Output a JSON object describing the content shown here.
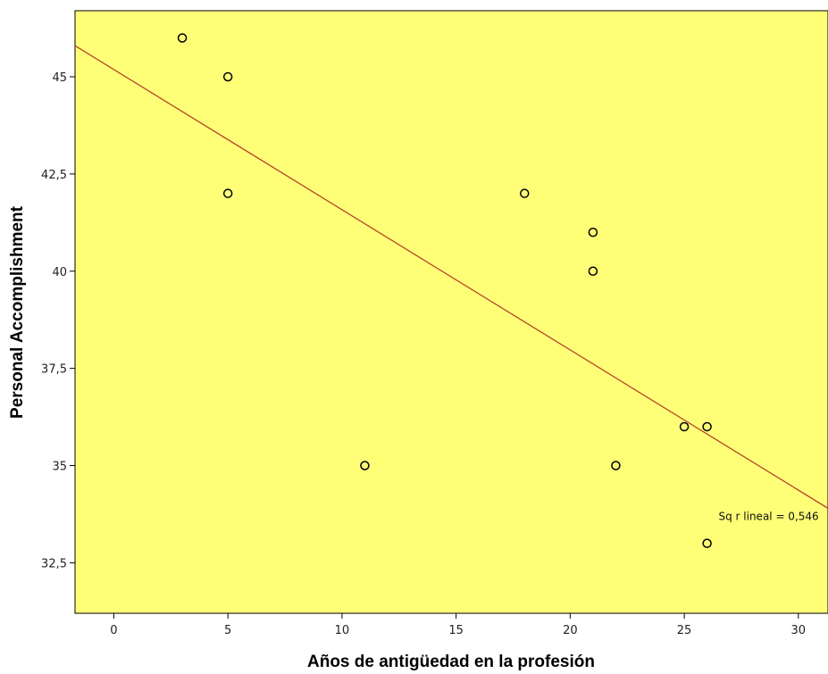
{
  "chart_data": {
    "type": "scatter",
    "xlabel": "Años de antigüedad en la profesión",
    "ylabel": "Personal Accomplishment",
    "xlim": [
      -1.7,
      31.3
    ],
    "ylim": [
      31.2,
      46.7
    ],
    "xticks": [
      0,
      5,
      10,
      15,
      20,
      25,
      30
    ],
    "yticks": [
      32.5,
      35,
      37.5,
      40,
      42.5,
      45
    ],
    "xtick_labels": [
      "0",
      "5",
      "10",
      "15",
      "20",
      "25",
      "30"
    ],
    "ytick_labels": [
      "32,5",
      "35",
      "37,5",
      "40",
      "42,5",
      "45"
    ],
    "points": [
      {
        "x": 3,
        "y": 46
      },
      {
        "x": 5,
        "y": 45
      },
      {
        "x": 5,
        "y": 42
      },
      {
        "x": 11,
        "y": 35
      },
      {
        "x": 18,
        "y": 42
      },
      {
        "x": 21,
        "y": 41
      },
      {
        "x": 21,
        "y": 40
      },
      {
        "x": 22,
        "y": 35
      },
      {
        "x": 25,
        "y": 36
      },
      {
        "x": 26,
        "y": 36
      },
      {
        "x": 26,
        "y": 33
      }
    ],
    "fit_line": {
      "type": "linear",
      "x0": -1.7,
      "y0": 45.8,
      "x1": 31.3,
      "y1": 33.9
    },
    "annotation": "Sq r lineal = 0,546",
    "annotation_anchor": {
      "x": 28.7,
      "y": 33.6
    },
    "grid": false,
    "legend": "none",
    "colors": {
      "plot_background": "#ffff77",
      "fit_line": "#b5452a",
      "marker_edge": "#000000",
      "axis": "#000000"
    }
  }
}
